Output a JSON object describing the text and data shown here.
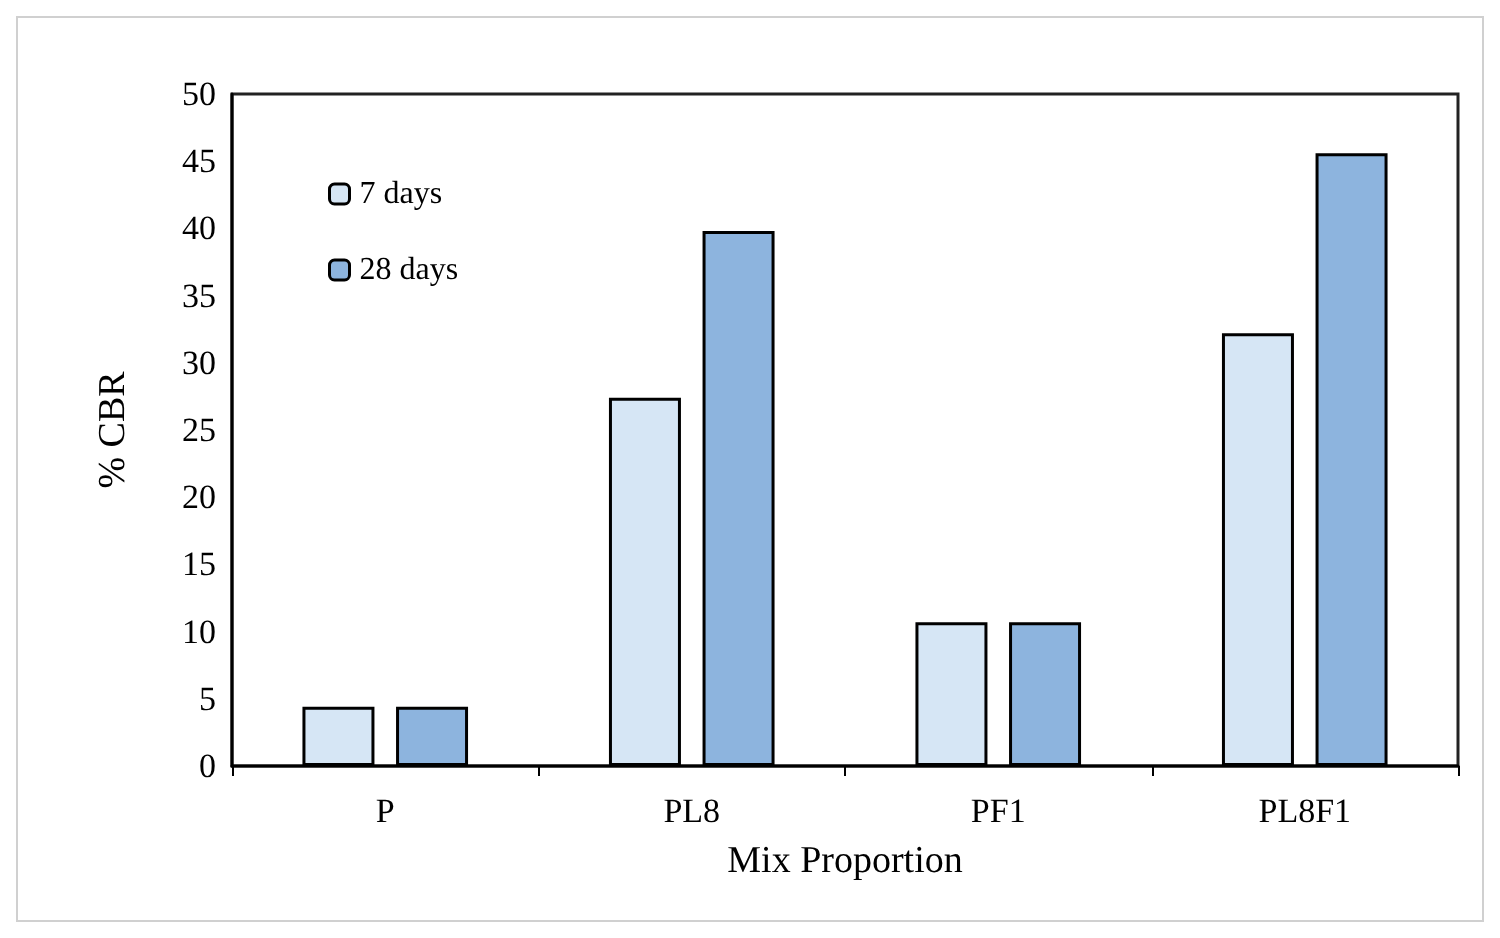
{
  "chart_data": {
    "type": "bar",
    "xlabel": "Mix Proportion",
    "ylabel": "% CBR",
    "categories": [
      "P",
      "PL8",
      "PF1",
      "PL8F1"
    ],
    "series": [
      {
        "name": "7 days",
        "color": "#d6e6f5",
        "values": [
          4.4,
          27.4,
          10.7,
          32.2
        ]
      },
      {
        "name": "28 days",
        "color": "#8db4de",
        "values": [
          4.4,
          39.8,
          10.7,
          45.6
        ]
      }
    ],
    "ylim": [
      0,
      50
    ],
    "yticks": [
      0,
      5,
      10,
      15,
      20,
      25,
      30,
      35,
      40,
      45,
      50
    ],
    "grid": false,
    "legend": "top left"
  }
}
